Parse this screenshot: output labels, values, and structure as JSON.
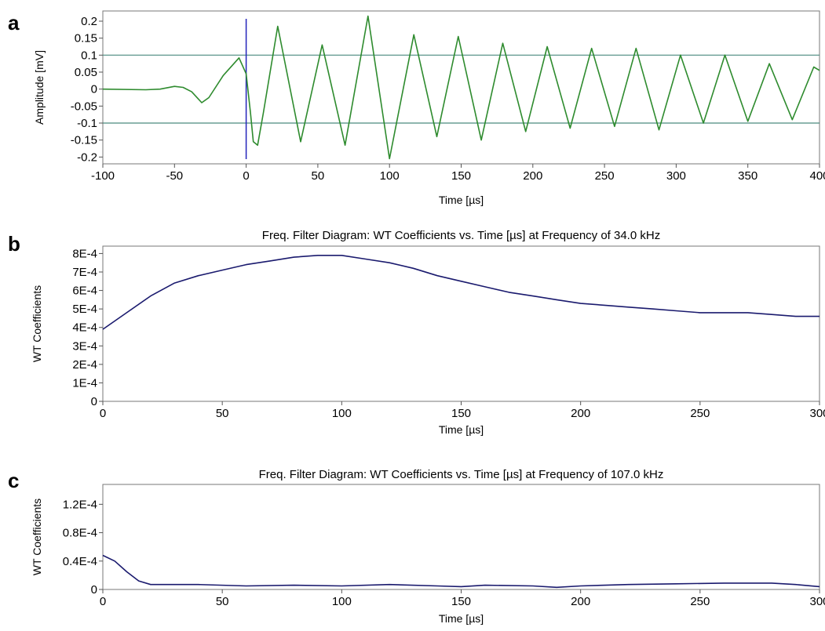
{
  "chart_data": [
    {
      "panel": "a",
      "type": "line",
      "title": "",
      "xlabel": "Time [µs]",
      "ylabel": "Amplitude [mV]",
      "xlim": [
        -100,
        400
      ],
      "ylim": [
        -0.22,
        0.23
      ],
      "xticks": [
        "-100",
        "-50",
        "0",
        "50",
        "100",
        "150",
        "200",
        "250",
        "300",
        "350",
        "400"
      ],
      "yticks": [
        "0.2",
        "0.15",
        "0.1",
        "0.05",
        "0",
        "-0.05",
        "-0.1",
        "-0.15",
        "-0.2"
      ],
      "reference_lines": {
        "horizontal": [
          0.1,
          -0.1
        ],
        "vertical": [
          0
        ]
      },
      "grid": false,
      "series": [
        {
          "color": "#2e8b2e",
          "points": [
            [
              -100,
              0.0
            ],
            [
              -70,
              -0.002
            ],
            [
              -60,
              0.0
            ],
            [
              -50,
              0.008
            ],
            [
              -44,
              0.005
            ],
            [
              -38,
              -0.008
            ],
            [
              -31,
              -0.04
            ],
            [
              -26,
              -0.025
            ],
            [
              -16,
              0.04
            ],
            [
              -5,
              0.092
            ],
            [
              0,
              0.045
            ],
            [
              3,
              -0.07
            ],
            [
              5,
              -0.155
            ],
            [
              8,
              -0.165
            ],
            [
              12,
              -0.07
            ],
            [
              22,
              0.185
            ],
            [
              38,
              -0.155
            ],
            [
              53,
              0.13
            ],
            [
              69,
              -0.165
            ],
            [
              85,
              0.215
            ],
            [
              100,
              -0.205
            ],
            [
              117,
              0.16
            ],
            [
              133,
              -0.14
            ],
            [
              148,
              0.155
            ],
            [
              164,
              -0.15
            ],
            [
              179,
              0.135
            ],
            [
              195,
              -0.125
            ],
            [
              210,
              0.125
            ],
            [
              226,
              -0.115
            ],
            [
              241,
              0.12
            ],
            [
              257,
              -0.11
            ],
            [
              272,
              0.12
            ],
            [
              288,
              -0.12
            ],
            [
              303,
              0.1
            ],
            [
              319,
              -0.1
            ],
            [
              334,
              0.1
            ],
            [
              350,
              -0.095
            ],
            [
              365,
              0.075
            ],
            [
              381,
              -0.09
            ],
            [
              396,
              0.065
            ],
            [
              400,
              0.055
            ]
          ]
        }
      ]
    },
    {
      "panel": "b",
      "type": "line",
      "title": "Freq. Filter Diagram: WT Coefficients vs. Time [µs] at Frequency of  34.0 kHz",
      "xlabel": "Time [µs]",
      "ylabel": "WT Coefficients",
      "xlim": [
        0,
        300
      ],
      "ylim": [
        0,
        0.00084
      ],
      "xticks": [
        "0",
        "50",
        "100",
        "150",
        "200",
        "250",
        "300"
      ],
      "yticks": [
        "8E-4",
        "7E-4",
        "6E-4",
        "5E-4",
        "4E-4",
        "3E-4",
        "2E-4",
        "1E-4",
        "0"
      ],
      "grid": false,
      "series": [
        {
          "color": "#1a1a6e",
          "points": [
            [
              0,
              0.00039
            ],
            [
              10,
              0.00048
            ],
            [
              20,
              0.00057
            ],
            [
              30,
              0.00064
            ],
            [
              40,
              0.00068
            ],
            [
              50,
              0.00071
            ],
            [
              60,
              0.00074
            ],
            [
              70,
              0.00076
            ],
            [
              80,
              0.00078
            ],
            [
              90,
              0.00079
            ],
            [
              100,
              0.00079
            ],
            [
              110,
              0.00077
            ],
            [
              120,
              0.00075
            ],
            [
              130,
              0.00072
            ],
            [
              140,
              0.00068
            ],
            [
              150,
              0.00065
            ],
            [
              160,
              0.00062
            ],
            [
              170,
              0.00059
            ],
            [
              180,
              0.00057
            ],
            [
              190,
              0.00055
            ],
            [
              200,
              0.00053
            ],
            [
              210,
              0.00052
            ],
            [
              220,
              0.00051
            ],
            [
              230,
              0.0005
            ],
            [
              240,
              0.00049
            ],
            [
              250,
              0.00048
            ],
            [
              260,
              0.00048
            ],
            [
              270,
              0.00048
            ],
            [
              280,
              0.00047
            ],
            [
              290,
              0.00046
            ],
            [
              300,
              0.00046
            ]
          ]
        }
      ]
    },
    {
      "panel": "c",
      "type": "line",
      "title": "Freq. Filter Diagram: WT Coefficients vs. Time [µs] at Frequency of 107.0 kHz",
      "xlabel": "Time [µs]",
      "ylabel": "WT Coefficients",
      "xlim": [
        0,
        300
      ],
      "ylim": [
        0,
        0.000148
      ],
      "xticks": [
        "0",
        "50",
        "100",
        "150",
        "200",
        "250",
        "300"
      ],
      "ytick_values": [
        0.00012,
        8e-05,
        4e-05,
        0
      ],
      "yticks": [
        "1.2E-4",
        "0.8E-4",
        "0.4E-4",
        "0"
      ],
      "grid": false,
      "series": [
        {
          "color": "#1a1a6e",
          "points": [
            [
              0,
              4.8e-05
            ],
            [
              5,
              4e-05
            ],
            [
              10,
              2.5e-05
            ],
            [
              15,
              1.2e-05
            ],
            [
              20,
              7e-06
            ],
            [
              40,
              7e-06
            ],
            [
              60,
              5e-06
            ],
            [
              80,
              6e-06
            ],
            [
              100,
              5e-06
            ],
            [
              120,
              7e-06
            ],
            [
              140,
              5e-06
            ],
            [
              150,
              4e-06
            ],
            [
              160,
              6e-06
            ],
            [
              180,
              5e-06
            ],
            [
              190,
              3e-06
            ],
            [
              200,
              5e-06
            ],
            [
              220,
              7e-06
            ],
            [
              240,
              8e-06
            ],
            [
              260,
              9e-06
            ],
            [
              280,
              9e-06
            ],
            [
              290,
              7e-06
            ],
            [
              300,
              4e-06
            ]
          ]
        }
      ]
    }
  ],
  "panel_labels": [
    "a",
    "b",
    "c"
  ],
  "colors": {
    "frame": "#777777",
    "reference_line": "#4a8a7e",
    "trigger_line": "#2222bb"
  }
}
